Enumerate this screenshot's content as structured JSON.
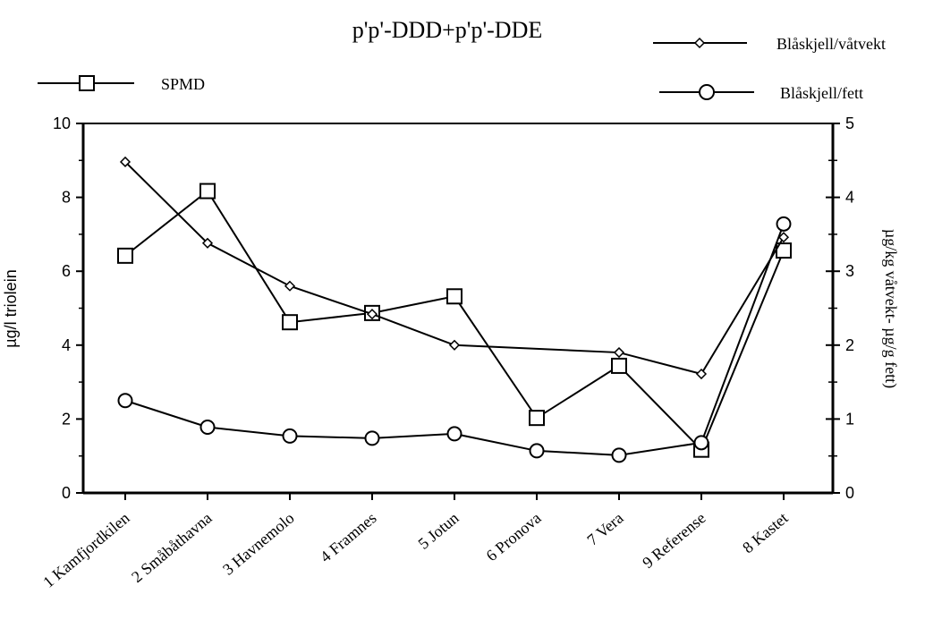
{
  "chart_data": {
    "type": "line",
    "title": "p'p'-DDD+p'p'-DDE",
    "categories": [
      "1 Kamfjordkilen",
      "2 Småbåthavna",
      "3 Havnemolo",
      "4 Framnes",
      "5 Jotun",
      "6 Pronova",
      "7 Vera",
      "9 Referense",
      "8 Kastet"
    ],
    "ylabel_left": "µg/l triolein",
    "ylabel_right": "µg/kg våtvekt- µg/g fett)",
    "ylim_left": [
      0,
      10
    ],
    "ylim_right": [
      0,
      5
    ],
    "yticks_left": [
      "0",
      "2",
      "4",
      "6",
      "8",
      "10"
    ],
    "yticks_right": [
      "0",
      "1",
      "2",
      "3",
      "4",
      "5"
    ],
    "grid": false,
    "series": [
      {
        "name": "SPMD",
        "axis": "left",
        "marker": "square",
        "values": [
          6.42,
          8.17,
          4.62,
          4.87,
          5.32,
          2.03,
          3.44,
          1.17,
          6.56
        ]
      },
      {
        "name": "Blåskjell/våtvekt",
        "axis": "right",
        "marker": "diamond",
        "values": [
          4.48,
          3.38,
          2.8,
          2.42,
          2.0,
          null,
          1.9,
          1.61,
          3.46
        ]
      },
      {
        "name": "Blåskjell/fett",
        "axis": "right",
        "marker": "circle",
        "values": [
          1.25,
          0.89,
          0.77,
          0.74,
          0.8,
          0.57,
          0.51,
          0.68,
          3.64
        ]
      }
    ]
  }
}
